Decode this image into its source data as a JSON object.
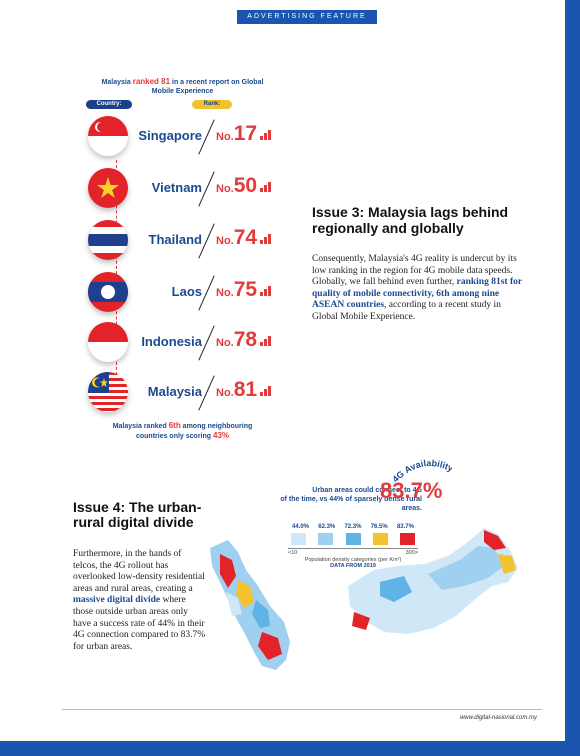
{
  "header": {
    "label": "ADVERTISING FEATURE"
  },
  "ranking": {
    "title_pre": "Malaysia ",
    "title_highlight": "ranked 81",
    "title_post": " in a recent report on Global Mobile Experience",
    "col_country": "Country:",
    "col_rank": "Rank:",
    "prefix": "No.",
    "rows": [
      {
        "country": "Singapore",
        "rank": "17",
        "flag": "singapore-flag-icon"
      },
      {
        "country": "Vietnam",
        "rank": "50",
        "flag": "vietnam-flag-icon"
      },
      {
        "country": "Thailand",
        "rank": "74",
        "flag": "thailand-flag-icon"
      },
      {
        "country": "Laos",
        "rank": "75",
        "flag": "laos-flag-icon"
      },
      {
        "country": "Indonesia",
        "rank": "78",
        "flag": "indonesia-flag-icon"
      },
      {
        "country": "Malaysia",
        "rank": "81",
        "flag": "malaysia-flag-icon"
      }
    ],
    "foot_pre": "Malaysia ranked ",
    "foot_rank": "6th",
    "foot_mid": " among neighbouring countries only scoring ",
    "foot_score": "43%"
  },
  "issue3": {
    "heading": "Issue 3: Malaysia lags behind regionally and globally",
    "body_pre": "Consequently, Malaysia's 4G reality is undercut by its low ranking in the region for 4G mobile data speeds. Globally, we fall behind even further, ",
    "body_hl": "ranking 81st for quality of mobile connectivity, 6th among nine ASEAN countries",
    "body_post": ", according to a recent study in Global Mobile Experience."
  },
  "issue4": {
    "heading": "Issue 4: The urban-rural digital divide",
    "body_pre": "Furthermore, in the hands of telcos, the 4G rollout has overlooked low-density residential areas and rural areas, creating a ",
    "body_hl": "massive digital divide",
    "body_post": " where those outside urban areas only have a success rate of 44% in their 4G connection compared to 83.7% for urban areas."
  },
  "availability": {
    "badge": "4G Availability",
    "text_line1": "Urban areas could connect to 4G",
    "text_line2": "of the time, vs 44% of sparsely dense rural areas.",
    "big_value": "83.7%",
    "legend_values": [
      "44.0%",
      "62.3%",
      "72.3%",
      "76.5%",
      "83.7%"
    ],
    "legend_colors": [
      "#cfe7f7",
      "#9fd0f0",
      "#5fb3e6",
      "#f3c22c",
      "#e2232a"
    ],
    "axis_low": "<10",
    "axis_high": "300>",
    "axis_note": "Population density categories (per Km²)",
    "source": "DATA FROM 2019"
  },
  "footer": {
    "url": "www.digital-nasional.com.my"
  }
}
